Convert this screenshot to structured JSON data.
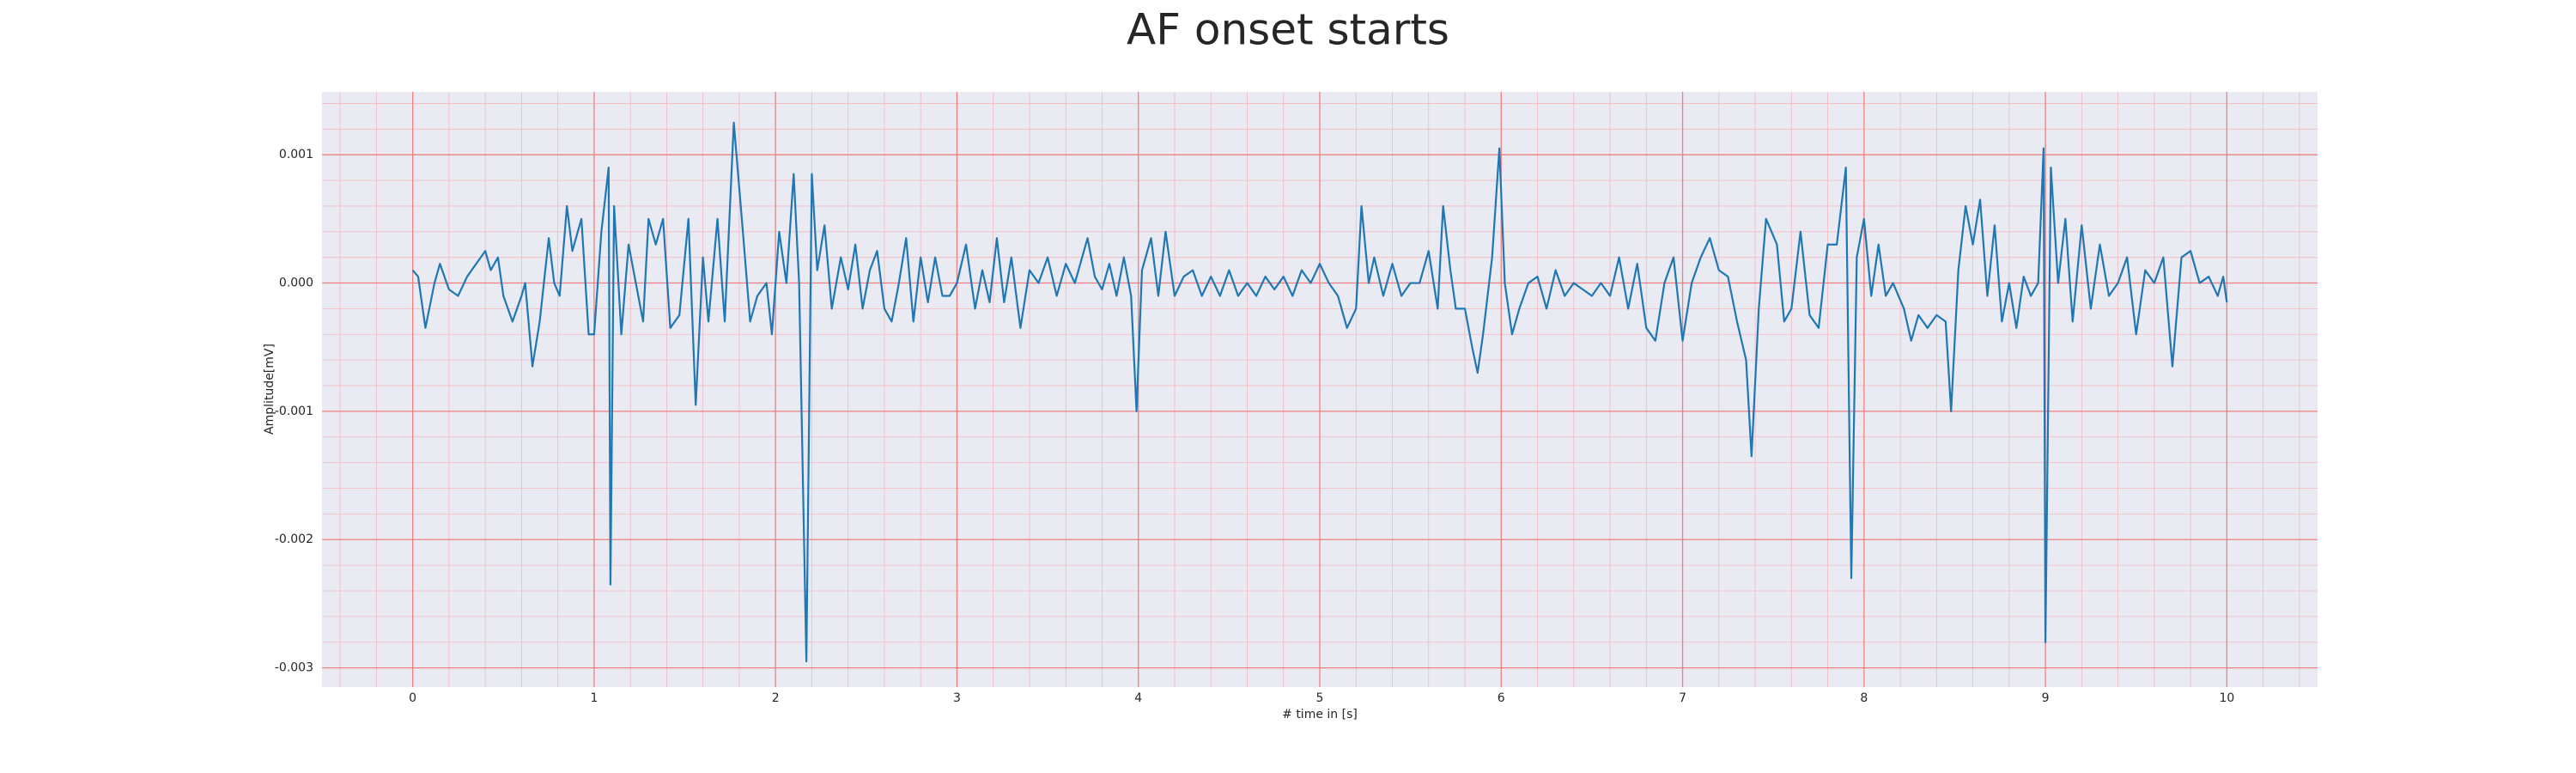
{
  "chart_data": {
    "type": "line",
    "title": "AF onset starts",
    "xlabel": "# time in [s]",
    "ylabel": "Amplitude[mV]",
    "color": "#1f77b4",
    "grid": true,
    "minor_grid": true,
    "background": "#eaeaf2",
    "grid_color": "#f08080",
    "minor_grid_color": "#f4b8c0",
    "xlim": [
      -0.5,
      10.5
    ],
    "xticks": [
      0,
      1,
      2,
      3,
      4,
      5,
      6,
      7,
      8,
      9,
      10
    ],
    "ylim": [
      -0.00315,
      0.00149
    ],
    "yticks": [
      {
        "value": -0.003,
        "label": "-0.003"
      },
      {
        "value": -0.002,
        "label": "-0.002"
      },
      {
        "value": -0.001,
        "label": "-0.001"
      },
      {
        "value": 0,
        "label": "0.000"
      },
      {
        "value": 0.001,
        "label": "0.001"
      }
    ],
    "x": [
      0,
      0.03,
      0.07,
      0.12,
      0.15,
      0.2,
      0.25,
      0.3,
      0.35,
      0.4,
      0.43,
      0.47,
      0.5,
      0.55,
      0.6,
      0.62,
      0.66,
      0.7,
      0.75,
      0.78,
      0.81,
      0.85,
      0.88,
      0.93,
      0.97,
      1.0,
      1.04,
      1.08,
      1.09,
      1.11,
      1.15,
      1.19,
      1.23,
      1.27,
      1.3,
      1.34,
      1.38,
      1.42,
      1.47,
      1.52,
      1.56,
      1.6,
      1.63,
      1.68,
      1.72,
      1.77,
      1.82,
      1.86,
      1.9,
      1.95,
      1.98,
      2.02,
      2.06,
      2.1,
      2.13,
      2.17,
      2.2,
      2.23,
      2.27,
      2.31,
      2.36,
      2.4,
      2.44,
      2.48,
      2.52,
      2.56,
      2.6,
      2.64,
      2.68,
      2.72,
      2.76,
      2.8,
      2.84,
      2.88,
      2.92,
      2.96,
      3.0,
      3.05,
      3.1,
      3.14,
      3.18,
      3.22,
      3.26,
      3.3,
      3.35,
      3.4,
      3.45,
      3.5,
      3.55,
      3.6,
      3.65,
      3.72,
      3.76,
      3.8,
      3.84,
      3.88,
      3.92,
      3.96,
      3.99,
      4.02,
      4.07,
      4.11,
      4.15,
      4.2,
      4.25,
      4.3,
      4.35,
      4.4,
      4.45,
      4.5,
      4.55,
      4.6,
      4.65,
      4.7,
      4.75,
      4.8,
      4.85,
      4.9,
      4.95,
      5.0,
      5.05,
      5.1,
      5.15,
      5.2,
      5.23,
      5.27,
      5.3,
      5.35,
      5.4,
      5.45,
      5.5,
      5.55,
      5.6,
      5.65,
      5.68,
      5.72,
      5.75,
      5.8,
      5.84,
      5.87,
      5.9,
      5.95,
      5.99,
      6.02,
      6.06,
      6.1,
      6.15,
      6.2,
      6.25,
      6.3,
      6.35,
      6.4,
      6.45,
      6.5,
      6.55,
      6.6,
      6.65,
      6.7,
      6.75,
      6.8,
      6.85,
      6.9,
      6.95,
      7.0,
      7.05,
      7.1,
      7.15,
      7.2,
      7.25,
      7.3,
      7.35,
      7.38,
      7.42,
      7.46,
      7.52,
      7.56,
      7.6,
      7.65,
      7.7,
      7.75,
      7.8,
      7.85,
      7.9,
      7.93,
      7.96,
      8.0,
      8.04,
      8.08,
      8.12,
      8.16,
      8.22,
      8.26,
      8.3,
      8.35,
      8.4,
      8.45,
      8.48,
      8.52,
      8.56,
      8.6,
      8.64,
      8.68,
      8.72,
      8.76,
      8.8,
      8.84,
      8.88,
      8.92,
      8.96,
      8.99,
      9.0,
      9.03,
      9.07,
      9.11,
      9.15,
      9.2,
      9.25,
      9.3,
      9.35,
      9.4,
      9.45,
      9.5,
      9.55,
      9.6,
      9.65,
      9.7,
      9.75,
      9.8,
      9.85,
      9.9,
      9.95,
      9.98,
      10.0
    ],
    "values": [
      0.0001,
      5e-05,
      -0.00035,
      0,
      0.00015,
      -5e-05,
      -0.0001,
      5e-05,
      0.00015,
      0.00025,
      0.0001,
      0.0002,
      -0.0001,
      -0.0003,
      -0.0001,
      0,
      -0.00065,
      -0.0003,
      0.00035,
      0,
      -0.0001,
      0.0006,
      0.00025,
      0.0005,
      -0.0004,
      -0.0004,
      0.0004,
      0.0009,
      -0.00235,
      0.0006,
      -0.0004,
      0.0003,
      0,
      -0.0003,
      0.0005,
      0.0003,
      0.0005,
      -0.00035,
      -0.00025,
      0.0005,
      -0.00095,
      0.0002,
      -0.0003,
      0.0005,
      -0.0003,
      0.00125,
      0.0004,
      -0.0003,
      -0.0001,
      0,
      -0.0004,
      0.0004,
      0,
      0.00085,
      0,
      -0.00295,
      0.00085,
      0.0001,
      0.00045,
      -0.0002,
      0.0002,
      -5e-05,
      0.0003,
      -0.0002,
      0.0001,
      0.00025,
      -0.0002,
      -0.0003,
      0,
      0.00035,
      -0.0003,
      0.0002,
      -0.00015,
      0.0002,
      -0.0001,
      -0.0001,
      0,
      0.0003,
      -0.0002,
      0.0001,
      -0.00015,
      0.00035,
      -0.00015,
      0.0002,
      -0.00035,
      0.0001,
      0,
      0.0002,
      -0.0001,
      0.00015,
      0,
      0.00035,
      5e-05,
      -5e-05,
      0.00015,
      -0.0001,
      0.0002,
      -0.0001,
      -0.001,
      0.0001,
      0.00035,
      -0.0001,
      0.0004,
      -0.0001,
      5e-05,
      0.0001,
      -0.0001,
      5e-05,
      -0.0001,
      0.0001,
      -0.0001,
      0,
      -0.0001,
      5e-05,
      -5e-05,
      5e-05,
      -0.0001,
      0.0001,
      0,
      0.00015,
      0,
      -0.0001,
      -0.00035,
      -0.0002,
      0.0006,
      0,
      0.0002,
      -0.0001,
      0.00015,
      -0.0001,
      0,
      0,
      0.00025,
      -0.0002,
      0.0006,
      0.0001,
      -0.0002,
      -0.0002,
      -0.0005,
      -0.0007,
      -0.0004,
      0.0002,
      0.00105,
      0,
      -0.0004,
      -0.0002,
      0,
      5e-05,
      -0.0002,
      0.0001,
      -0.0001,
      0,
      -5e-05,
      -0.0001,
      0,
      -0.0001,
      0.0002,
      -0.0002,
      0.00015,
      -0.00035,
      -0.00045,
      0,
      0.0002,
      -0.00045,
      0,
      0.0002,
      0.00035,
      0.0001,
      5e-05,
      -0.0003,
      -0.0006,
      -0.00135,
      -0.0002,
      0.0005,
      0.0003,
      -0.0003,
      -0.0002,
      0.0004,
      -0.00025,
      -0.00035,
      0.0003,
      0.0003,
      0.0009,
      -0.0023,
      0.0002,
      0.0005,
      -0.0001,
      0.0003,
      -0.0001,
      0,
      -0.0002,
      -0.00045,
      -0.00025,
      -0.00035,
      -0.00025,
      -0.0003,
      -0.001,
      0.0001,
      0.0006,
      0.0003,
      0.00065,
      -0.0001,
      0.00045,
      -0.0003,
      0,
      -0.00035,
      5e-05,
      -0.0001,
      0,
      0.00105,
      -0.0028,
      0.0009,
      0,
      0.0005,
      -0.0003,
      0.00045,
      -0.0002,
      0.0003,
      -0.0001,
      0,
      0.0002,
      -0.0004,
      0.0001,
      0,
      0.0002,
      -0.00065,
      0.0002,
      0.00025,
      0,
      5e-05,
      -0.0001,
      5e-05,
      -0.00015
    ]
  }
}
